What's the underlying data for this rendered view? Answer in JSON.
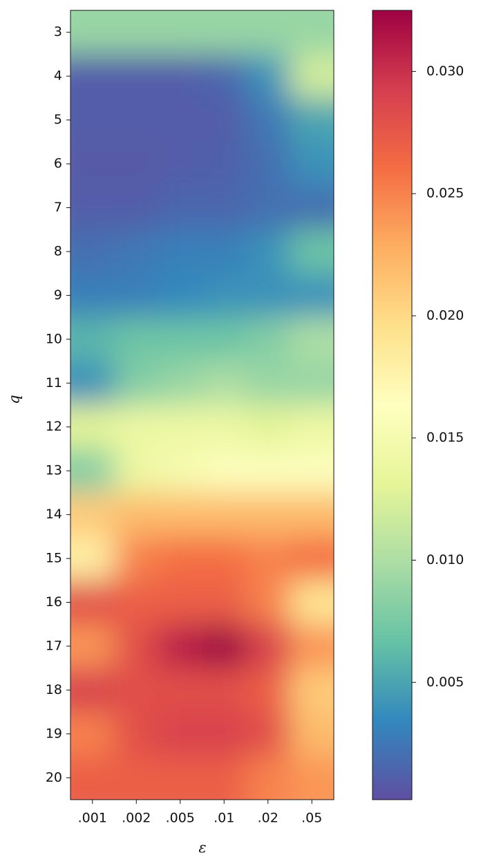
{
  "chart_data": {
    "type": "heatmap",
    "x_label": "ε",
    "y_label": "q",
    "categories": [
      ".001",
      ".002",
      ".005",
      ".01",
      ".02",
      ".05"
    ],
    "y": [
      3,
      4,
      5,
      6,
      7,
      8,
      9,
      10,
      11,
      12,
      13,
      14,
      15,
      16,
      17,
      18,
      19,
      20
    ],
    "values": [
      [
        0.009,
        0.009,
        0.009,
        0.009,
        0.009,
        0.009
      ],
      [
        0.001,
        0.001,
        0.001,
        0.0015,
        0.004,
        0.012
      ],
      [
        0.001,
        0.001,
        0.001,
        0.001,
        0.0025,
        0.005
      ],
      [
        0.0008,
        0.0008,
        0.001,
        0.0012,
        0.002,
        0.004
      ],
      [
        0.001,
        0.001,
        0.0015,
        0.0015,
        0.002,
        0.002
      ],
      [
        0.002,
        0.0025,
        0.003,
        0.003,
        0.004,
        0.007
      ],
      [
        0.003,
        0.003,
        0.0035,
        0.004,
        0.004,
        0.004
      ],
      [
        0.006,
        0.007,
        0.007,
        0.007,
        0.008,
        0.01
      ],
      [
        0.004,
        0.008,
        0.009,
        0.01,
        0.009,
        0.009
      ],
      [
        0.013,
        0.014,
        0.014,
        0.014,
        0.013,
        0.014
      ],
      [
        0.008,
        0.014,
        0.015,
        0.016,
        0.016,
        0.016
      ],
      [
        0.021,
        0.022,
        0.022,
        0.022,
        0.022,
        0.022
      ],
      [
        0.018,
        0.025,
        0.026,
        0.026,
        0.025,
        0.026
      ],
      [
        0.028,
        0.027,
        0.027,
        0.027,
        0.025,
        0.019
      ],
      [
        0.024,
        0.028,
        0.031,
        0.0325,
        0.029,
        0.024
      ],
      [
        0.029,
        0.028,
        0.028,
        0.028,
        0.027,
        0.021
      ],
      [
        0.025,
        0.028,
        0.029,
        0.029,
        0.028,
        0.022
      ],
      [
        0.027,
        0.027,
        0.027,
        0.027,
        0.025,
        0.024
      ]
    ],
    "colormap": "Spectral_r",
    "clim": [
      0.0002,
      0.0325
    ],
    "cticks": [
      0.005,
      {
        "value": 0.01,
        "label": "0.010"
      },
      0.015,
      {
        "value": 0.02,
        "label": "0.020"
      },
      0.025,
      {
        "value": 0.03,
        "label": "0.030"
      }
    ]
  }
}
